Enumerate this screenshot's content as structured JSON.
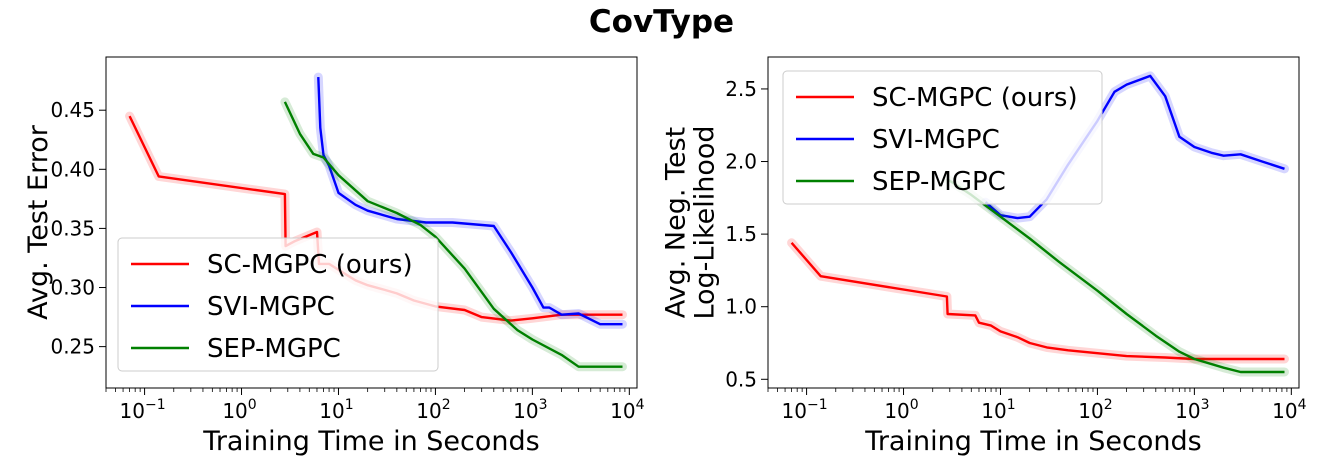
{
  "figure": {
    "title": "CovType"
  },
  "chart_data": [
    {
      "type": "line",
      "xlabel": "Training Time in Seconds",
      "ylabel": [
        "Avg. Test Error"
      ],
      "xscale": "log",
      "xlim": [
        0.04,
        12000
      ],
      "ylim": [
        0.215,
        0.495
      ],
      "xticks": [
        0.1,
        1,
        10,
        100,
        1000,
        10000
      ],
      "xtick_labels": [
        [
          "10",
          "−1"
        ],
        [
          "10",
          "0"
        ],
        [
          "10",
          "1"
        ],
        [
          "10",
          "2"
        ],
        [
          "10",
          "3"
        ],
        [
          "10",
          "4"
        ]
      ],
      "yticks": [
        0.25,
        0.3,
        0.35,
        0.4,
        0.45
      ],
      "ytick_labels": [
        "0.25",
        "0.30",
        "0.35",
        "0.40",
        "0.45"
      ],
      "grid": false,
      "legend_position": "lower-left",
      "series": [
        {
          "name": "SC-MGPC (ours)",
          "color": "#ff0000",
          "x": [
            0.07,
            0.14,
            2.8,
            2.85,
            3.5,
            6.0,
            6.3,
            8,
            10,
            15,
            20,
            30,
            40,
            60,
            100,
            200,
            300,
            600,
            1000,
            2000,
            8500
          ],
          "y": [
            0.445,
            0.394,
            0.379,
            0.335,
            0.339,
            0.347,
            0.32,
            0.32,
            0.315,
            0.306,
            0.302,
            0.298,
            0.295,
            0.289,
            0.284,
            0.281,
            0.275,
            0.272,
            0.274,
            0.277,
            0.277
          ]
        },
        {
          "name": "SVI-MGPC",
          "color": "#0000ff",
          "x": [
            6.2,
            6.5,
            7,
            8,
            10,
            15,
            20,
            40,
            80,
            150,
            400,
            600,
            1000,
            1300,
            1500,
            2000,
            3000,
            5000,
            8500
          ],
          "y": [
            0.478,
            0.435,
            0.412,
            0.403,
            0.38,
            0.37,
            0.365,
            0.358,
            0.355,
            0.355,
            0.352,
            0.33,
            0.3,
            0.283,
            0.283,
            0.277,
            0.278,
            0.269,
            0.269
          ]
        },
        {
          "name": "SEP-MGPC",
          "color": "#008000",
          "x": [
            2.8,
            4,
            5.5,
            7,
            10,
            20,
            40,
            70,
            100,
            200,
            400,
            700,
            1000,
            2000,
            3000,
            5000,
            8500
          ],
          "y": [
            0.457,
            0.43,
            0.413,
            0.41,
            0.395,
            0.373,
            0.363,
            0.353,
            0.343,
            0.316,
            0.282,
            0.264,
            0.256,
            0.243,
            0.233,
            0.233,
            0.233
          ]
        }
      ]
    },
    {
      "type": "line",
      "xlabel": "Training Time in Seconds",
      "ylabel": [
        "Avg. Neg. Test",
        "Log-Likelihood"
      ],
      "xscale": "log",
      "xlim": [
        0.04,
        12000
      ],
      "ylim": [
        0.44,
        2.72
      ],
      "xticks": [
        0.1,
        1,
        10,
        100,
        1000,
        10000
      ],
      "xtick_labels": [
        [
          "10",
          "−1"
        ],
        [
          "10",
          "0"
        ],
        [
          "10",
          "1"
        ],
        [
          "10",
          "2"
        ],
        [
          "10",
          "3"
        ],
        [
          "10",
          "4"
        ]
      ],
      "yticks": [
        0.5,
        1.0,
        1.5,
        2.0,
        2.5
      ],
      "ytick_labels": [
        "0.5",
        "1.0",
        "1.5",
        "2.0",
        "2.5"
      ],
      "grid": false,
      "legend_position": "upper-left",
      "series": [
        {
          "name": "SC-MGPC (ours)",
          "color": "#ff0000",
          "x": [
            0.07,
            0.14,
            2.8,
            2.85,
            5.5,
            6,
            8,
            10,
            15,
            20,
            30,
            50,
            100,
            200,
            500,
            1000,
            2000,
            8500
          ],
          "y": [
            1.44,
            1.21,
            1.07,
            0.95,
            0.94,
            0.89,
            0.87,
            0.83,
            0.79,
            0.75,
            0.72,
            0.7,
            0.68,
            0.66,
            0.65,
            0.64,
            0.64,
            0.64
          ]
        },
        {
          "name": "SVI-MGPC",
          "color": "#0000ff",
          "x": [
            7,
            10,
            15,
            20,
            30,
            50,
            100,
            150,
            200,
            350,
            500,
            700,
            1000,
            1500,
            2000,
            3000,
            5000,
            8500
          ],
          "y": [
            1.72,
            1.63,
            1.61,
            1.62,
            1.74,
            1.98,
            2.28,
            2.48,
            2.53,
            2.59,
            2.45,
            2.17,
            2.1,
            2.06,
            2.04,
            2.05,
            2.0,
            1.95
          ]
        },
        {
          "name": "SEP-MGPC",
          "color": "#008000",
          "x": [
            2.8,
            5,
            10,
            20,
            40,
            100,
            200,
            400,
            700,
            1000,
            2000,
            3000,
            8500
          ],
          "y": [
            1.88,
            1.77,
            1.62,
            1.47,
            1.31,
            1.11,
            0.95,
            0.8,
            0.69,
            0.64,
            0.58,
            0.55,
            0.55
          ]
        }
      ]
    }
  ]
}
